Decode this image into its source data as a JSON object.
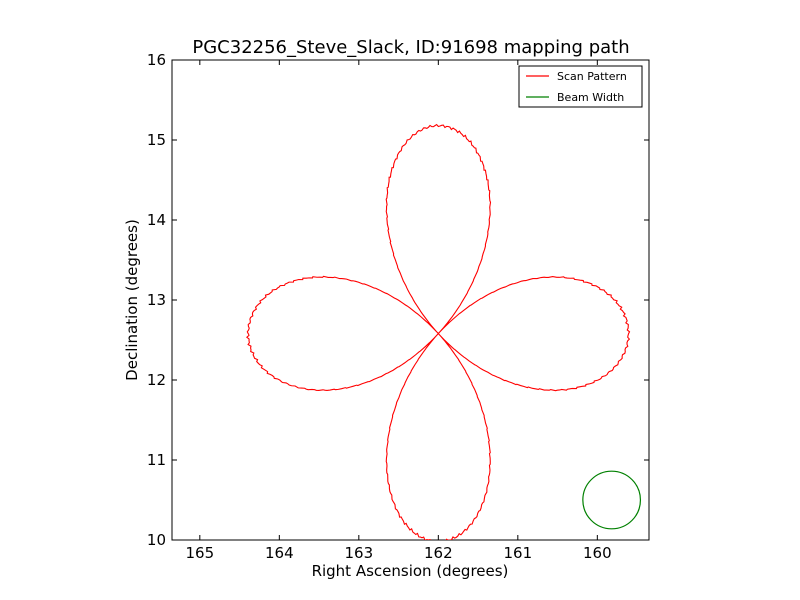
{
  "chart_data": {
    "type": "line",
    "title": "PGC32256_Steve_Slack, ID:91698 mapping path",
    "xlabel": "Right Ascension (degrees)",
    "ylabel": "Declination (degrees)",
    "xlim": [
      165.35,
      159.35
    ],
    "ylim": [
      10,
      16
    ],
    "x_inverted": true,
    "xticks": [
      165,
      164,
      163,
      162,
      161,
      160
    ],
    "yticks": [
      10,
      11,
      12,
      13,
      14,
      15,
      16
    ],
    "grid": false,
    "legend_position": "top-right",
    "center": [
      162.0,
      12.58
    ],
    "petal_radius": 2.6,
    "series": [
      {
        "name": "Scan Pattern",
        "color": "#ff0000",
        "description": "Four-leaf rose scan path centered at RA 162.0, Dec 12.58"
      },
      {
        "name": "Beam Width",
        "color": "#008000",
        "circle": {
          "center_ra": 159.82,
          "center_dec": 10.5,
          "radius_dec": 0.36
        }
      }
    ]
  }
}
